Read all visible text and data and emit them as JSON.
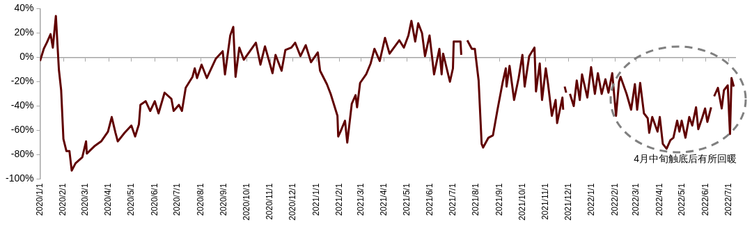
{
  "chart_data": {
    "type": "line",
    "line_style": "solid",
    "marker": "none",
    "legend": false,
    "annotations": [
      "4月中旬触底后有所回暖"
    ],
    "xlim": [
      "2020-01-01",
      "2022-07-10"
    ],
    "xticks": [
      {
        "value": "2020-01-01",
        "label": "2020/1/1"
      },
      {
        "value": "2020-02-01",
        "label": "2020/2/1"
      },
      {
        "value": "2020-03-01",
        "label": "2020/3/1"
      },
      {
        "value": "2020-04-01",
        "label": "2020/4/1"
      },
      {
        "value": "2020-05-01",
        "label": "2020/5/1"
      },
      {
        "value": "2020-06-01",
        "label": "2020/6/1"
      },
      {
        "value": "2020-07-01",
        "label": "2020/7/1"
      },
      {
        "value": "2020-08-01",
        "label": "2020/8/1"
      },
      {
        "value": "2020-09-01",
        "label": "2020/9/1"
      },
      {
        "value": "2020-10-01",
        "label": "2020/10/1"
      },
      {
        "value": "2020-11-01",
        "label": "2020/11/1"
      },
      {
        "value": "2020-12-01",
        "label": "2020/12/1"
      },
      {
        "value": "2021-01-01",
        "label": "2021/1/1"
      },
      {
        "value": "2021-02-01",
        "label": "2021/2/1"
      },
      {
        "value": "2021-03-01",
        "label": "2021/3/1"
      },
      {
        "value": "2021-04-01",
        "label": "2021/4/1"
      },
      {
        "value": "2021-05-01",
        "label": "2021/5/1"
      },
      {
        "value": "2021-06-01",
        "label": "2021/6/1"
      },
      {
        "value": "2021-07-01",
        "label": "2021/7/1"
      },
      {
        "value": "2021-08-01",
        "label": "2021/8/1"
      },
      {
        "value": "2021-09-01",
        "label": "2021/9/1"
      },
      {
        "value": "2021-10-01",
        "label": "2021/10/1"
      },
      {
        "value": "2021-11-01",
        "label": "2021/11/1"
      },
      {
        "value": "2021-12-01",
        "label": "2021/12/1"
      },
      {
        "value": "2022-01-01",
        "label": "2022/1/1"
      },
      {
        "value": "2022-02-01",
        "label": "2022/2/1"
      },
      {
        "value": "2022-03-01",
        "label": "2022/3/1"
      },
      {
        "value": "2022-04-01",
        "label": "2022/4/1"
      },
      {
        "value": "2022-05-01",
        "label": "2022/5/1"
      },
      {
        "value": "2022-06-01",
        "label": "2022/6/1"
      },
      {
        "value": "2022-07-01",
        "label": "2022/7/1"
      }
    ],
    "ylim": [
      -100,
      40
    ],
    "yticks": [
      {
        "value": -100,
        "label": "-100%"
      },
      {
        "value": -80,
        "label": "-80%"
      },
      {
        "value": -60,
        "label": "-60%"
      },
      {
        "value": -40,
        "label": "-40%"
      },
      {
        "value": -20,
        "label": "-20%"
      },
      {
        "value": 0,
        "label": "0%"
      },
      {
        "value": 20,
        "label": "20%"
      },
      {
        "value": 40,
        "label": "40%"
      }
    ],
    "x": [
      "2020-01-01",
      "2020-01-06",
      "2020-01-10",
      "2020-01-15",
      "2020-01-18",
      "2020-01-22",
      "2020-01-26",
      "2020-01-29",
      "2020-02-01",
      "2020-02-05",
      "2020-02-09",
      "2020-02-12",
      "2020-02-17",
      "2020-02-26",
      "2020-03-02",
      "2020-03-03",
      "2020-03-13",
      "2020-03-22",
      "2020-03-31",
      "2020-04-05",
      "2020-04-10",
      "2020-04-13",
      "2020-04-22",
      "2020-05-01",
      "2020-05-06",
      "2020-05-11",
      "2020-05-13",
      "2020-05-20",
      "2020-05-26",
      "2020-06-01",
      "2020-06-06",
      "2020-06-14",
      "2020-06-23",
      "2020-06-26",
      "2020-07-03",
      "2020-07-07",
      "2020-07-12",
      "2020-07-21",
      "2020-07-24",
      "2020-07-27",
      "2020-08-02",
      "2020-08-09",
      "2020-08-21",
      "2020-08-30",
      "2020-09-02",
      "2020-09-09",
      "2020-09-13",
      "2020-09-16",
      "2020-09-21",
      "2020-09-27",
      "2020-10-13",
      "2020-10-19",
      "2020-10-25",
      "2020-11-04",
      "2020-11-08",
      "2020-11-16",
      "2020-11-21",
      "2020-11-29",
      "2020-12-04",
      "2020-12-11",
      "2020-12-18",
      "2020-12-25",
      "2021-01-03",
      "2021-01-06",
      "2021-01-15",
      "2021-01-20",
      "2021-01-29",
      "2021-01-30",
      "2021-02-02",
      "2021-02-08",
      "2021-02-11",
      "2021-02-17",
      "2021-02-22",
      "2021-02-24",
      "2021-02-28",
      "2021-03-08",
      "2021-03-14",
      "2021-03-19",
      "2021-03-26",
      "2021-04-02",
      "2021-04-08",
      "2021-04-21",
      "2021-04-27",
      "2021-05-03",
      "2021-05-07",
      "2021-05-12",
      "2021-05-16",
      "2021-05-21",
      "2021-05-25",
      "2021-05-31",
      "2021-06-06",
      "2021-06-13",
      "2021-06-16",
      "2021-06-18",
      "2021-06-27",
      "2021-07-01",
      "2021-07-02",
      "2021-07-11",
      "2021-07-12",
      "2021-07-16",
      "2021-07-20",
      "2021-07-26",
      "2021-07-30",
      "2021-08-04",
      "2021-08-08",
      "2021-08-10",
      "2021-08-17",
      "2021-08-23",
      "2021-08-29",
      "2021-09-05",
      "2021-09-09",
      "2021-09-10",
      "2021-09-14",
      "2021-09-20",
      "2021-09-26",
      "2021-10-01",
      "2021-10-04",
      "2021-10-10",
      "2021-10-17",
      "2021-10-19",
      "2021-10-24",
      "2021-10-27",
      "2021-11-01",
      "2021-11-04",
      "2021-11-09",
      "2021-11-14",
      "2021-11-16",
      "2021-11-23",
      "2021-11-24",
      "2021-11-25",
      "2021-11-26",
      "2021-11-28",
      "2021-12-01",
      "2021-12-03",
      "2021-12-08",
      "2021-12-12",
      "2021-12-16",
      "2021-12-19",
      "2021-12-26",
      "2021-12-31",
      "2022-01-05",
      "2022-01-09",
      "2022-01-14",
      "2022-01-19",
      "2022-01-23",
      "2022-01-28",
      "2022-02-02",
      "2022-02-06",
      "2022-02-08",
      "2022-02-16",
      "2022-02-22",
      "2022-02-27",
      "2022-03-02",
      "2022-03-06",
      "2022-03-11",
      "2022-03-16",
      "2022-03-18",
      "2022-03-22",
      "2022-03-29",
      "2022-04-01",
      "2022-04-05",
      "2022-04-10",
      "2022-04-15",
      "2022-04-19",
      "2022-04-24",
      "2022-04-27",
      "2022-04-30",
      "2022-05-05",
      "2022-05-10",
      "2022-05-14",
      "2022-05-19",
      "2022-05-22",
      "2022-05-27",
      "2022-05-31",
      "2022-06-03",
      "2022-06-08",
      "2022-06-10",
      "2022-06-12",
      "2022-06-17",
      "2022-06-22",
      "2022-06-25",
      "2022-06-30",
      "2022-07-03",
      "2022-07-05",
      "2022-07-08"
    ],
    "series": [
      {
        "color": "#600000",
        "values": [
          -3,
          7,
          12,
          19,
          8,
          34,
          -10,
          -27,
          -67,
          -77,
          -77,
          -93,
          -87,
          -82,
          -69,
          -79,
          -73,
          -69,
          -61,
          -49,
          -62,
          -69,
          -62,
          -56,
          -65,
          -55,
          -39,
          -36,
          -44,
          -36,
          -46,
          -29,
          -34,
          -44,
          -39,
          -44,
          -25,
          -16,
          -9,
          -17,
          -6,
          -17,
          -1,
          5,
          -14,
          18,
          25,
          -16,
          8,
          -2,
          12,
          -6,
          9,
          -13,
          2,
          -11,
          6,
          8,
          12,
          1,
          10,
          -4,
          4,
          -11,
          -22,
          -30,
          -48,
          -65,
          -61,
          -52,
          -70,
          -38,
          -31,
          -41,
          -21,
          -14,
          -5,
          7,
          -3,
          16,
          3,
          14,
          8,
          18,
          30,
          13,
          28,
          20,
          1,
          18,
          -14,
          7,
          -14,
          3,
          -20,
          -9,
          13,
          13,
          2,
          null,
          14,
          7,
          7,
          -19,
          -71,
          -74,
          -66,
          -64,
          -43,
          -20,
          -9,
          -24,
          -7,
          -35,
          -17,
          2,
          -24,
          1,
          8,
          -28,
          -5,
          -35,
          -9,
          -22,
          -48,
          -35,
          -54,
          -33,
          -43,
          null,
          -24,
          -29,
          null,
          -30,
          -40,
          -19,
          -35,
          -14,
          -33,
          -8,
          -30,
          -13,
          -30,
          -18,
          -29,
          -13,
          -48,
          -20,
          -16,
          -30,
          -43,
          -22,
          -43,
          -21,
          -46,
          -50,
          -62,
          -49,
          -61,
          -49,
          -71,
          -75,
          -68,
          -66,
          -52,
          -61,
          -52,
          -66,
          -49,
          -56,
          -41,
          -59,
          -50,
          -42,
          -53,
          -41,
          null,
          -32,
          -25,
          -42,
          -27,
          -23,
          -63,
          -17,
          -24
        ]
      }
    ]
  }
}
